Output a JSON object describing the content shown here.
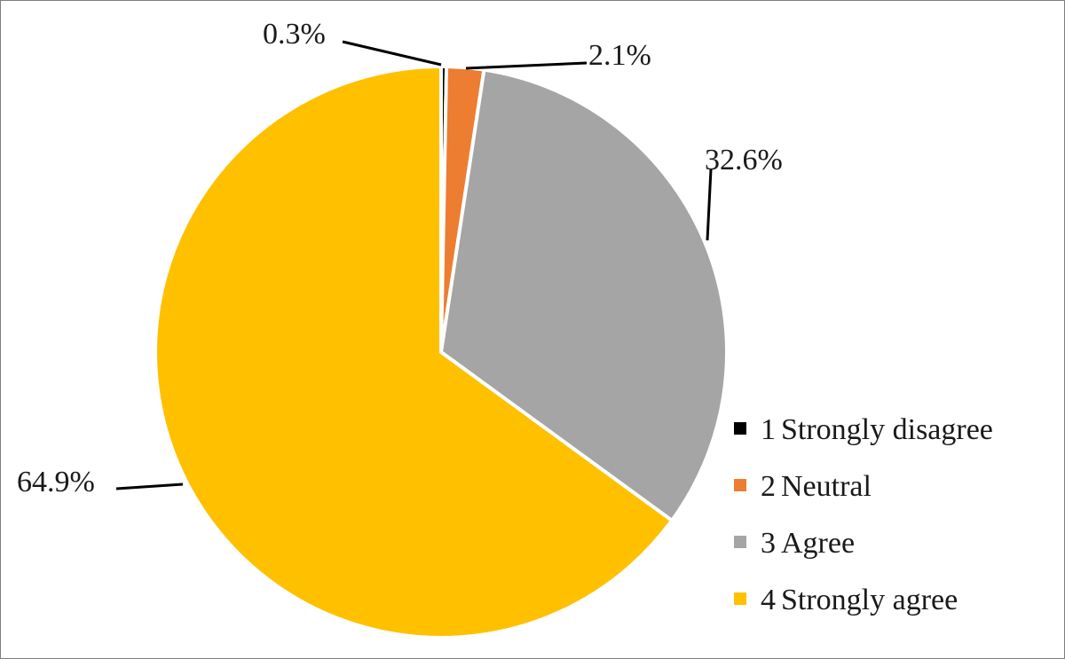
{
  "chart_data": {
    "type": "pie",
    "title": "",
    "categories": [
      "1 Strongly disagree",
      "2 Neutral",
      "3 Agree",
      "4 Strongly agree"
    ],
    "values": [
      0.3,
      2.1,
      32.6,
      64.9
    ],
    "data_labels": [
      "0.3%",
      "2.1%",
      "32.6%",
      "64.9%"
    ],
    "colors": [
      "#000000",
      "#ED7D31",
      "#A5A5A5",
      "#FFC000"
    ],
    "start_angle": "12 o'clock",
    "direction": "clockwise",
    "legend": {
      "placement": "right-bottom",
      "entries": [
        {
          "number": "1",
          "text": "Strongly disagree"
        },
        {
          "number": "2",
          "text": "Neutral"
        },
        {
          "number": "3",
          "text": "Agree"
        },
        {
          "number": "4",
          "text": "Strongly agree"
        }
      ]
    },
    "slice_border_color": "#FFFFFF"
  }
}
